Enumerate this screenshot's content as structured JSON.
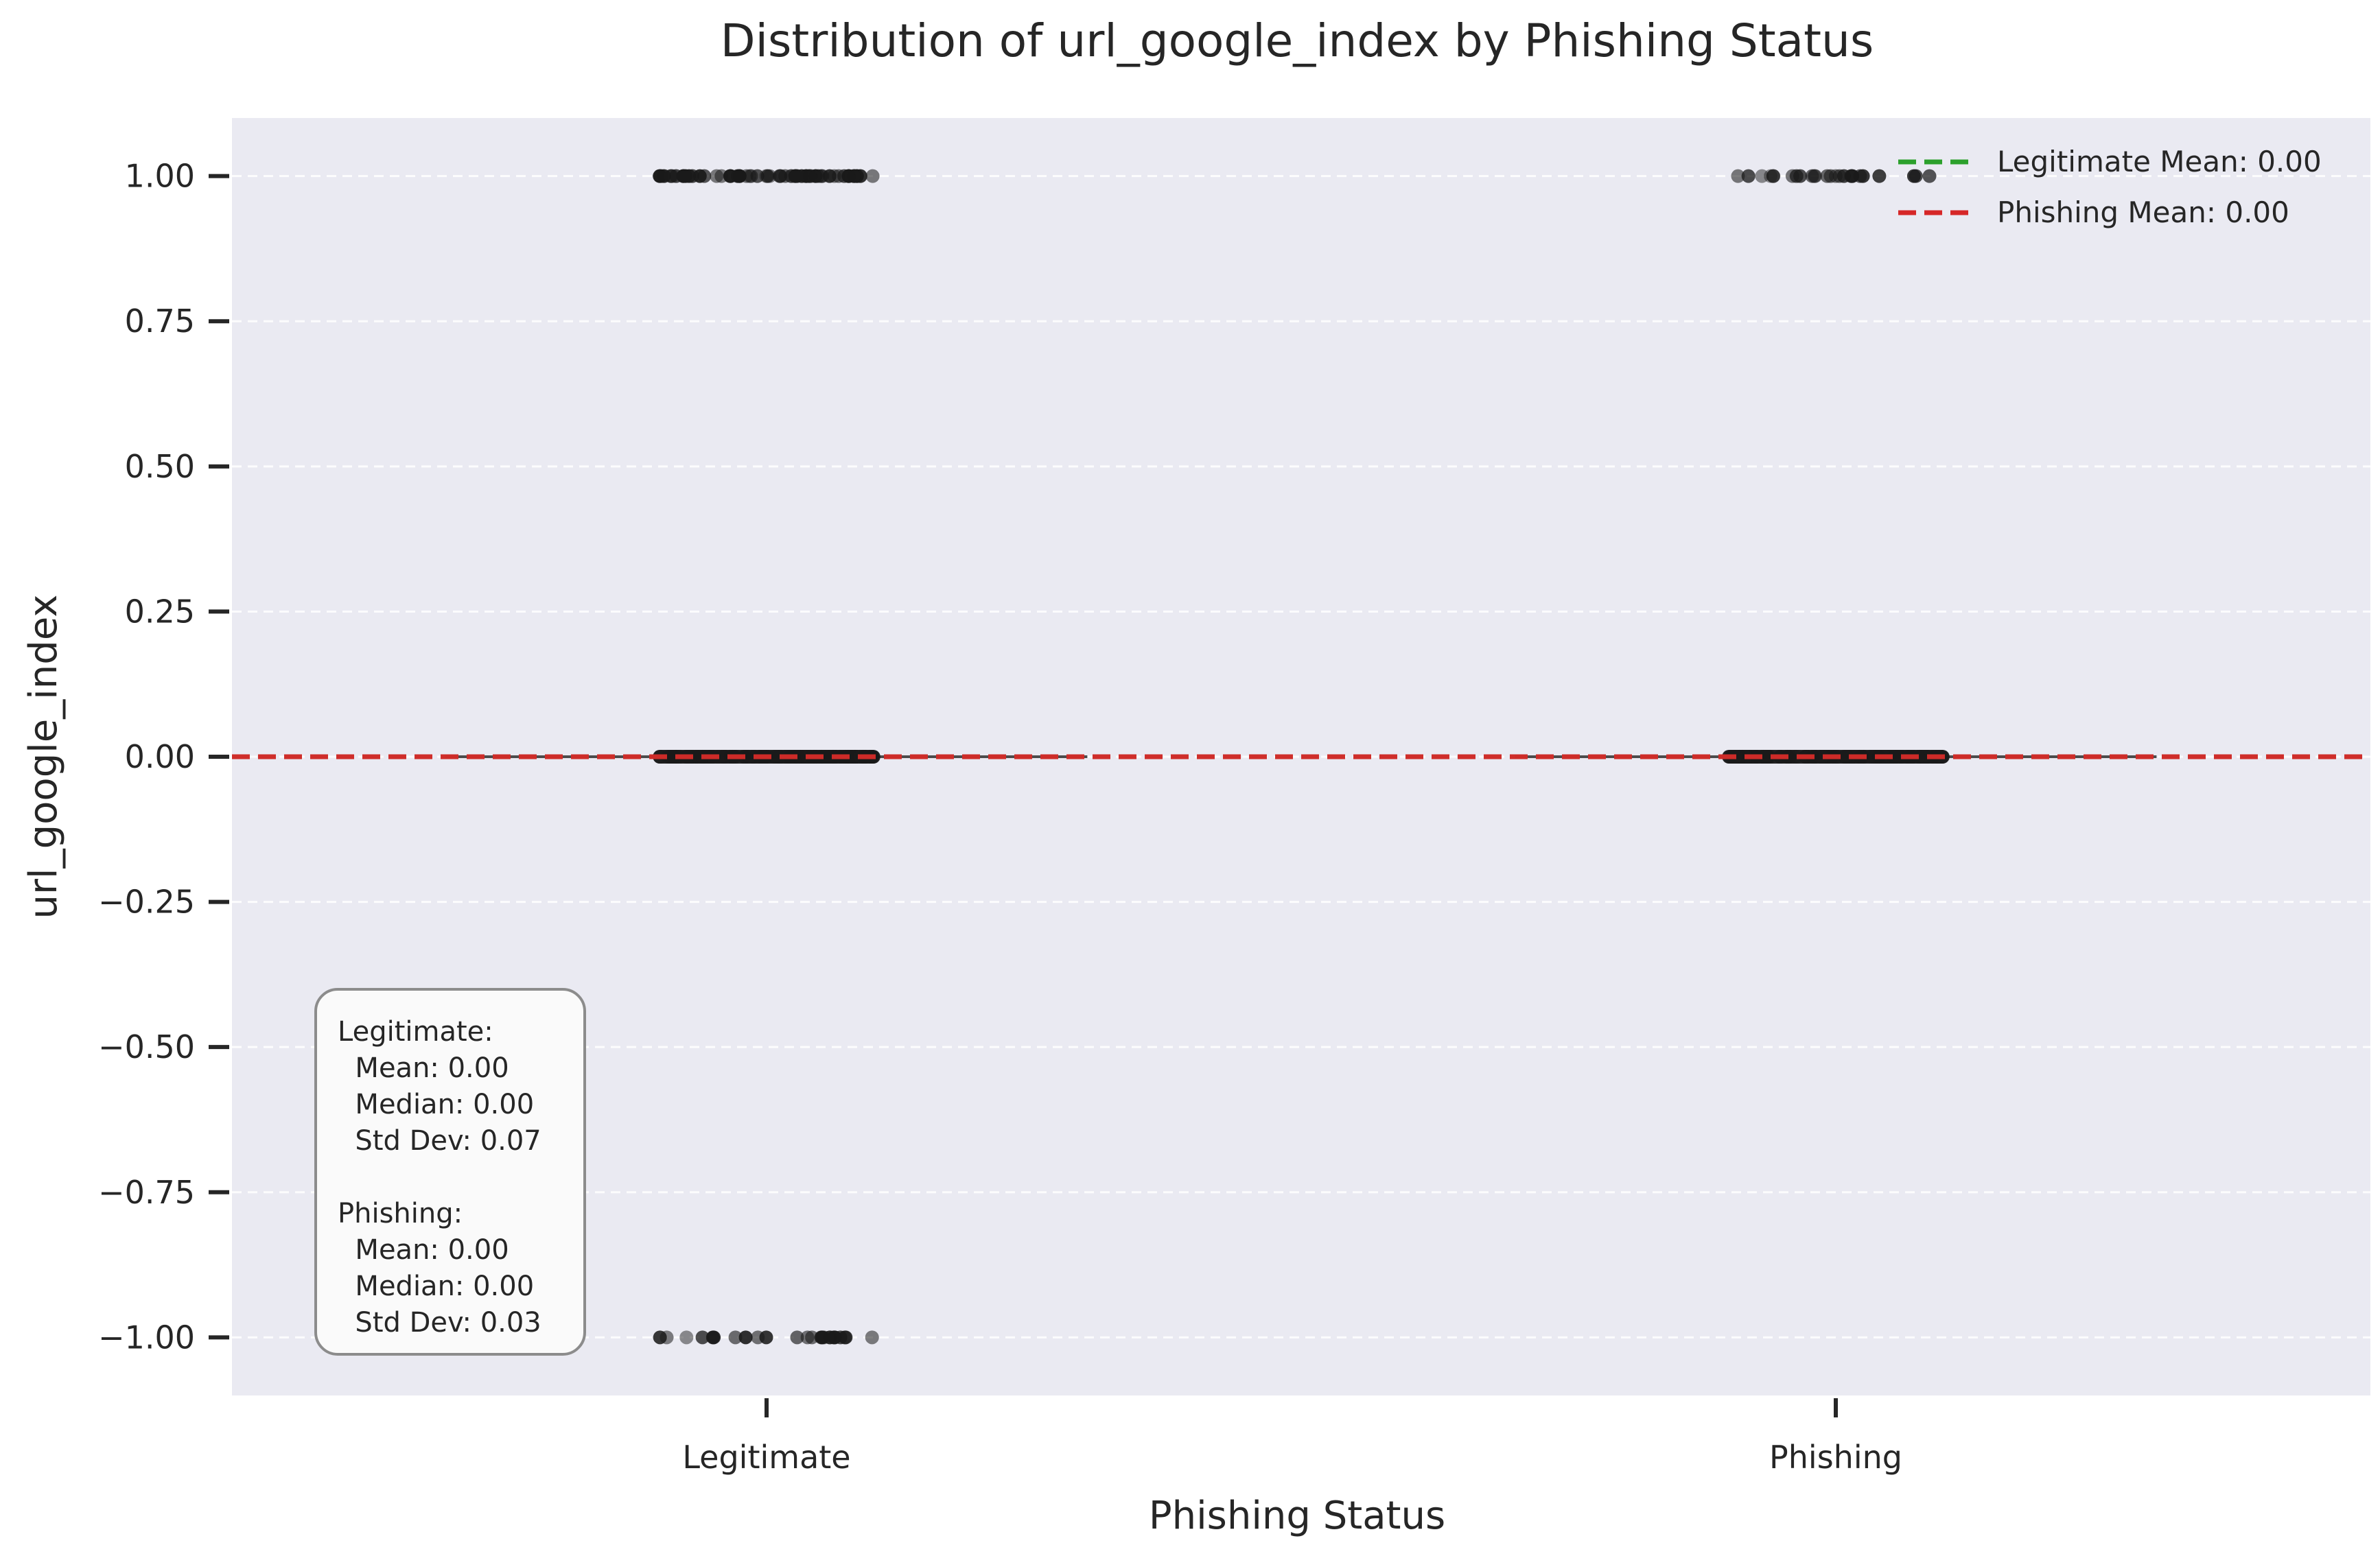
{
  "chart_data": {
    "type": "strip",
    "title": "Distribution of url_google_index by Phishing Status",
    "xlabel": "Phishing Status",
    "ylabel": "url_google_index",
    "categories": [
      "Legitimate",
      "Phishing"
    ],
    "ylim": [
      -1.1,
      1.1
    ],
    "yticks": [
      1.0,
      0.75,
      0.5,
      0.25,
      0.0,
      -0.25,
      -0.5,
      -0.75,
      -1.0
    ],
    "ytick_labels": [
      "1.00",
      "0.75",
      "0.50",
      "0.25",
      "0.00",
      "−0.25",
      "−0.50",
      "−0.75",
      "−1.00"
    ],
    "grid": true,
    "series": [
      {
        "category": "Legitimate",
        "observed_values": [
          1,
          0,
          -1
        ]
      },
      {
        "category": "Phishing",
        "observed_values": [
          1,
          0
        ]
      }
    ],
    "box_medians": [
      {
        "category": "Legitimate",
        "value": 0.0
      },
      {
        "category": "Phishing",
        "value": 0.0
      }
    ],
    "reference_lines": [
      {
        "label": "Legitimate Mean: 0.00",
        "value": 0.0,
        "color": "#2ca02c",
        "style": "dashed"
      },
      {
        "label": "Phishing Mean: 0.00",
        "value": 0.0,
        "color": "#d62728",
        "style": "dashed"
      }
    ],
    "legend_placement": "top-right",
    "stats_box": {
      "lines": [
        "Legitimate:",
        "  Mean: 0.00",
        "  Median: 0.00",
        "  Std Dev: 0.07",
        "",
        "Phishing:",
        "  Mean: 0.00",
        "  Median: 0.00",
        "  Std Dev: 0.03"
      ]
    },
    "colors": {
      "plot_background": "#eaeaf2",
      "grid": "#ffffff",
      "points": "#1a1a1a",
      "legitimate_mean": "#2ca02c",
      "phishing_mean": "#d62728"
    }
  }
}
